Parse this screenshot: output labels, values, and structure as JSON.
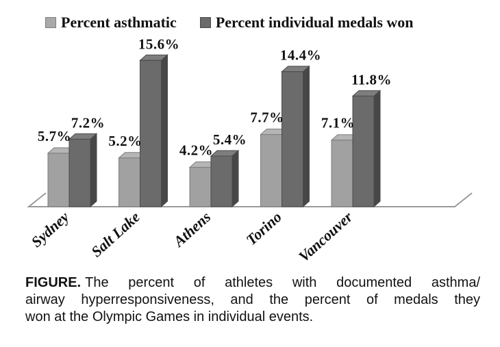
{
  "figure": {
    "legend": {
      "items": [
        {
          "label": "Percent asthmatic",
          "color": "#a9a9a9"
        },
        {
          "label": "Percent individual medals won",
          "color": "#6b6b6b"
        }
      ]
    },
    "caption": {
      "label": "FIGURE.",
      "line1": "The percent of athletes with documented asthma/",
      "line2": "airway hyperresponsiveness, and the percent of medals they",
      "line3": "won at the Olympic Games in individual events."
    }
  },
  "chart_data": {
    "type": "bar",
    "title": "",
    "xlabel": "",
    "ylabel": "",
    "categories": [
      "Sydney",
      "Salt Lake",
      "Athens",
      "Torino",
      "Vancouver"
    ],
    "series": [
      {
        "name": "Percent asthmatic",
        "values": [
          5.7,
          5.2,
          4.2,
          7.7,
          7.1
        ],
        "data_labels": [
          "5.7%",
          "5.2%",
          "4.2%",
          "7.7%",
          "7.1%"
        ],
        "color": "#a9a9a9"
      },
      {
        "name": "Percent individual medals won",
        "values": [
          7.2,
          15.6,
          5.4,
          14.4,
          11.8
        ],
        "data_labels": [
          "7.2%",
          "15.6%",
          "5.4%",
          "14.4%",
          "11.8%"
        ],
        "color": "#6b6b6b"
      }
    ],
    "ylim": [
      0,
      16
    ],
    "grid": false,
    "y_axis_visible": false,
    "legend_position": "top",
    "style": "3d-perspective grayscale bars with data labels above bars and rotated category labels"
  }
}
